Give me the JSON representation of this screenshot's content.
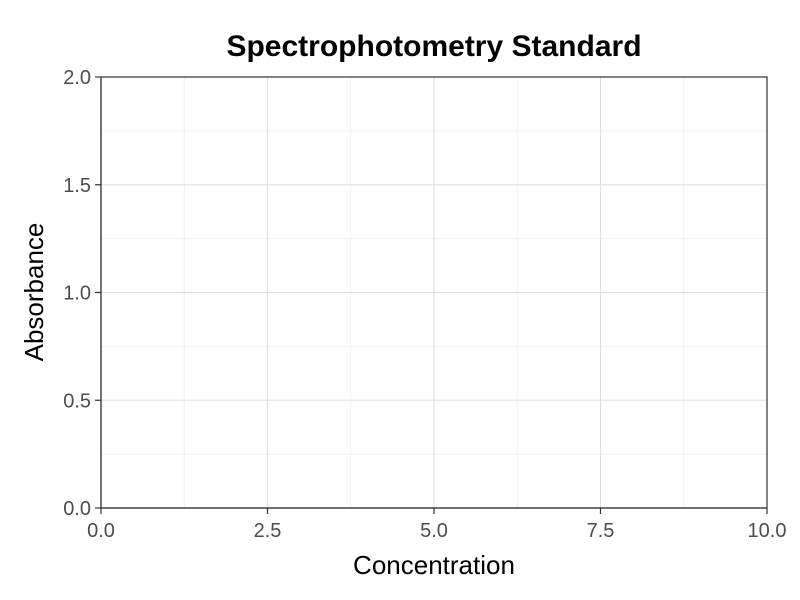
{
  "chart_data": {
    "type": "scatter",
    "title": "Spectrophotometry Standard",
    "xlabel": "Concentration",
    "ylabel": "Absorbance",
    "xlim": [
      0,
      10
    ],
    "ylim": [
      0,
      2
    ],
    "x_ticks": [
      0,
      2.5,
      5,
      7.5,
      10
    ],
    "x_tick_labels": [
      "0.0",
      "2.5",
      "5.0",
      "7.5",
      "10.0"
    ],
    "y_ticks": [
      0,
      0.5,
      1,
      1.5,
      2
    ],
    "y_tick_labels": [
      "0.0",
      "0.5",
      "1.0",
      "1.5",
      "2.0"
    ],
    "x_minor_ticks": [
      1.25,
      3.75,
      6.25,
      8.75
    ],
    "y_minor_ticks": [
      0.25,
      0.75,
      1.25,
      1.75
    ],
    "grid": true,
    "series": []
  }
}
